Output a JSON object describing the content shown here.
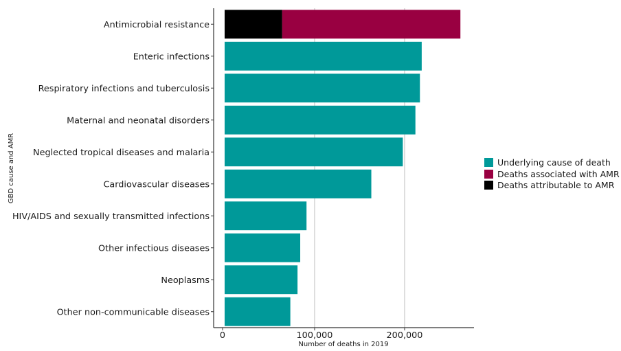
{
  "chart_data": {
    "type": "bar",
    "orientation": "horizontal",
    "stacked": true,
    "xlabel": "Number of deaths in 2019",
    "ylabel": "GBD cause and AMR",
    "xlim": [
      0,
      275000
    ],
    "xticks": [
      0,
      100000,
      200000
    ],
    "xtick_labels": [
      "0",
      "100,000",
      "200,000"
    ],
    "grid": "vertical major lines",
    "legend_position": "right",
    "categories": [
      "Antimicrobial resistance",
      "Enteric infections",
      "Respiratory infections and tuberculosis",
      "Maternal and neonatal disorders",
      "Neglected tropical diseases and malaria",
      "Cardiovascular diseases",
      "HIV/AIDS and sexually transmitted infections",
      "Other infectious diseases",
      "Neoplasms",
      "Other non-communicable diseases"
    ],
    "series": [
      {
        "name": "Deaths attributable to AMR",
        "color": "#000000",
        "values": [
          64000,
          0,
          0,
          0,
          0,
          0,
          0,
          0,
          0,
          0
        ]
      },
      {
        "name": "Deaths associated with AMR",
        "color": "#990041",
        "values": [
          198000,
          0,
          0,
          0,
          0,
          0,
          0,
          0,
          0,
          0
        ]
      },
      {
        "name": "Underlying cause of death",
        "color": "#009999",
        "values": [
          0,
          219000,
          217000,
          212000,
          198000,
          163000,
          91000,
          84000,
          81000,
          73000
        ]
      }
    ],
    "legend_order": [
      "Underlying cause of death",
      "Deaths associated with AMR",
      "Deaths attributable to AMR"
    ]
  }
}
